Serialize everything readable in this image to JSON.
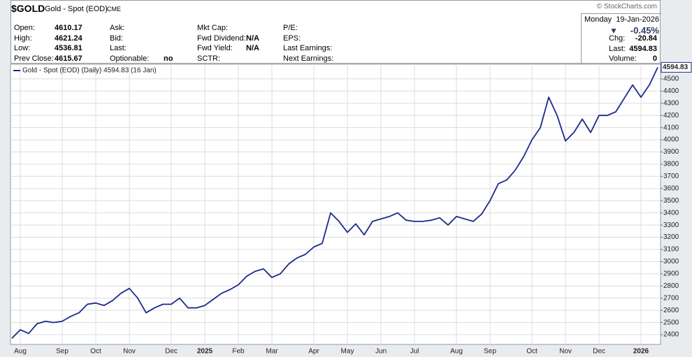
{
  "header": {
    "ticker": "$GOLD",
    "name": "Gold - Spot (EOD)",
    "exchange": "CME",
    "watermark": "© StockCharts.com",
    "columns": [
      [
        {
          "label": "Open:",
          "value": "4610.17"
        },
        {
          "label": "High:",
          "value": "4621.24"
        },
        {
          "label": "Low:",
          "value": "4536.81"
        },
        {
          "label": "Prev Close:",
          "value": "4615.67"
        }
      ],
      [
        {
          "label": "Ask:"
        },
        {
          "label": "Bid:"
        },
        {
          "label": "Last:"
        },
        {
          "label": "Optionable:",
          "value": "no"
        }
      ],
      [
        {
          "label": "Mkt Cap:"
        },
        {
          "label": "Fwd Dividend:",
          "value": "N/A"
        },
        {
          "label": "Fwd Yield:",
          "value": "N/A"
        },
        {
          "label": "SCTR:"
        }
      ],
      [
        {
          "label": "P/E:"
        },
        {
          "label": "EPS:"
        },
        {
          "label": "Last Earnings:"
        },
        {
          "label": "Next Earnings:"
        }
      ]
    ],
    "date": "Monday  19-Jan-2026",
    "change_pct": "-0.45%",
    "quote": [
      {
        "label": "Chg:",
        "value": "-20.84"
      },
      {
        "label": "Last:",
        "value": "4594.83"
      },
      {
        "label": "Volume:",
        "value": "0"
      }
    ]
  },
  "chart_data": {
    "type": "line",
    "categories": [
      null,
      "Aug",
      null,
      null,
      null,
      null,
      "Sep",
      null,
      null,
      null,
      "Oct",
      null,
      null,
      null,
      "Nov",
      null,
      null,
      null,
      null,
      "Dec",
      null,
      null,
      null,
      "2025",
      null,
      null,
      null,
      "Feb",
      null,
      null,
      null,
      "Mar",
      null,
      null,
      null,
      null,
      "Apr",
      null,
      null,
      null,
      "May",
      null,
      null,
      null,
      "Jun",
      null,
      null,
      null,
      "Jul",
      null,
      null,
      null,
      null,
      "Aug",
      null,
      null,
      null,
      "Sep",
      null,
      null,
      null,
      null,
      "Oct",
      null,
      null,
      null,
      "Nov",
      null,
      null,
      null,
      "Dec",
      null,
      null,
      null,
      null,
      "2026",
      null,
      null
    ],
    "series": [
      {
        "name": "Gold - Spot (EOD) (Daily) 4594.83 (16 Jan)",
        "color": "#1c2a8a",
        "values": [
          2370,
          2440,
          2410,
          2490,
          2510,
          2500,
          2510,
          2550,
          2580,
          2650,
          2660,
          2640,
          2680,
          2740,
          2780,
          2700,
          2580,
          2620,
          2650,
          2650,
          2700,
          2620,
          2620,
          2640,
          2690,
          2740,
          2770,
          2810,
          2880,
          2920,
          2940,
          2870,
          2900,
          2980,
          3030,
          3060,
          3120,
          3150,
          3400,
          3330,
          3240,
          3310,
          3220,
          3330,
          3350,
          3370,
          3400,
          3340,
          3330,
          3330,
          3340,
          3360,
          3300,
          3370,
          3350,
          3330,
          3390,
          3500,
          3640,
          3670,
          3750,
          3860,
          4000,
          4100,
          4350,
          4200,
          3990,
          4060,
          4170,
          4060,
          4200,
          4200,
          4230,
          4340,
          4450,
          4350,
          4450,
          4594.83
        ]
      }
    ],
    "ylim": [
      2320,
      4620
    ],
    "yticks": [
      2400,
      2500,
      2600,
      2700,
      2800,
      2900,
      3000,
      3100,
      3200,
      3300,
      3400,
      3500,
      3600,
      3700,
      3800,
      3900,
      4000,
      4100,
      4200,
      4300,
      4400,
      4500
    ],
    "grid": true
  }
}
